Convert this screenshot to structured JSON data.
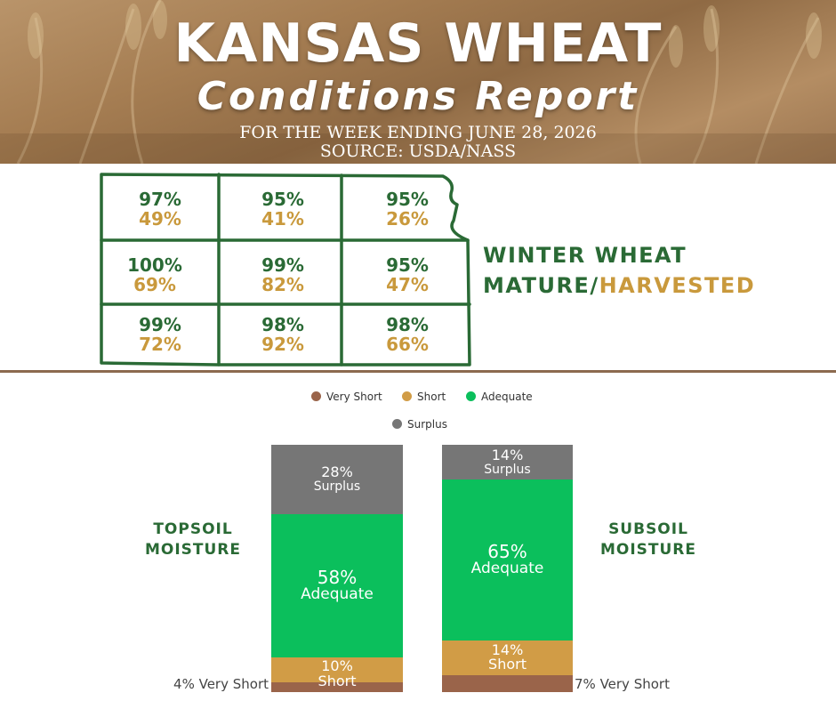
{
  "header": {
    "title_line1": "KANSAS WHEAT",
    "title_line2": "Conditions Report",
    "week_line": "FOR THE WEEK ENDING JUNE 28, 2026",
    "source_line": "SOURCE: USDA/NASS"
  },
  "map": {
    "label_part1": "WINTER WHEAT",
    "label_part2": "MATURE/",
    "label_part3": "HARVESTED",
    "colors": {
      "mature": "#2a6a35",
      "harvested": "#c9993c",
      "border": "#2a6a35"
    },
    "districts": [
      {
        "mature": "97%",
        "harvested": "49%"
      },
      {
        "mature": "95%",
        "harvested": "41%"
      },
      {
        "mature": "95%",
        "harvested": "26%"
      },
      {
        "mature": "100%",
        "harvested": "69%"
      },
      {
        "mature": "99%",
        "harvested": "82%"
      },
      {
        "mature": "95%",
        "harvested": "47%"
      },
      {
        "mature": "99%",
        "harvested": "72%"
      },
      {
        "mature": "98%",
        "harvested": "92%"
      },
      {
        "mature": "98%",
        "harvested": "66%"
      }
    ]
  },
  "chart_data": {
    "type": "bar",
    "stacked": true,
    "legend": [
      "Very Short",
      "Short",
      "Adequate",
      "Surplus"
    ],
    "legend_placement": "top",
    "colors": {
      "Very Short": "#9a644a",
      "Short": "#d19c46",
      "Adequate": "#0bbf5c",
      "Surplus": "#767676"
    },
    "bars": [
      {
        "label_lines": [
          "TOPSOIL",
          "MOISTURE"
        ],
        "segments": [
          {
            "name": "Very Short",
            "value": 4,
            "label": "4% Very Short"
          },
          {
            "name": "Short",
            "value": 10,
            "pct": "10%",
            "label": "Short"
          },
          {
            "name": "Adequate",
            "value": 58,
            "pct": "58%",
            "label": "Adequate"
          },
          {
            "name": "Surplus",
            "value": 28,
            "pct": "28%",
            "label": "Surplus"
          }
        ]
      },
      {
        "label_lines": [
          "SUBSOIL",
          "MOISTURE"
        ],
        "segments": [
          {
            "name": "Very Short",
            "value": 7,
            "label": "7% Very Short"
          },
          {
            "name": "Short",
            "value": 14,
            "pct": "14%",
            "label": "Short"
          },
          {
            "name": "Adequate",
            "value": 65,
            "pct": "65%",
            "label": "Adequate"
          },
          {
            "name": "Surplus",
            "value": 14,
            "pct": "14%",
            "label": "Surplus"
          }
        ]
      }
    ]
  }
}
